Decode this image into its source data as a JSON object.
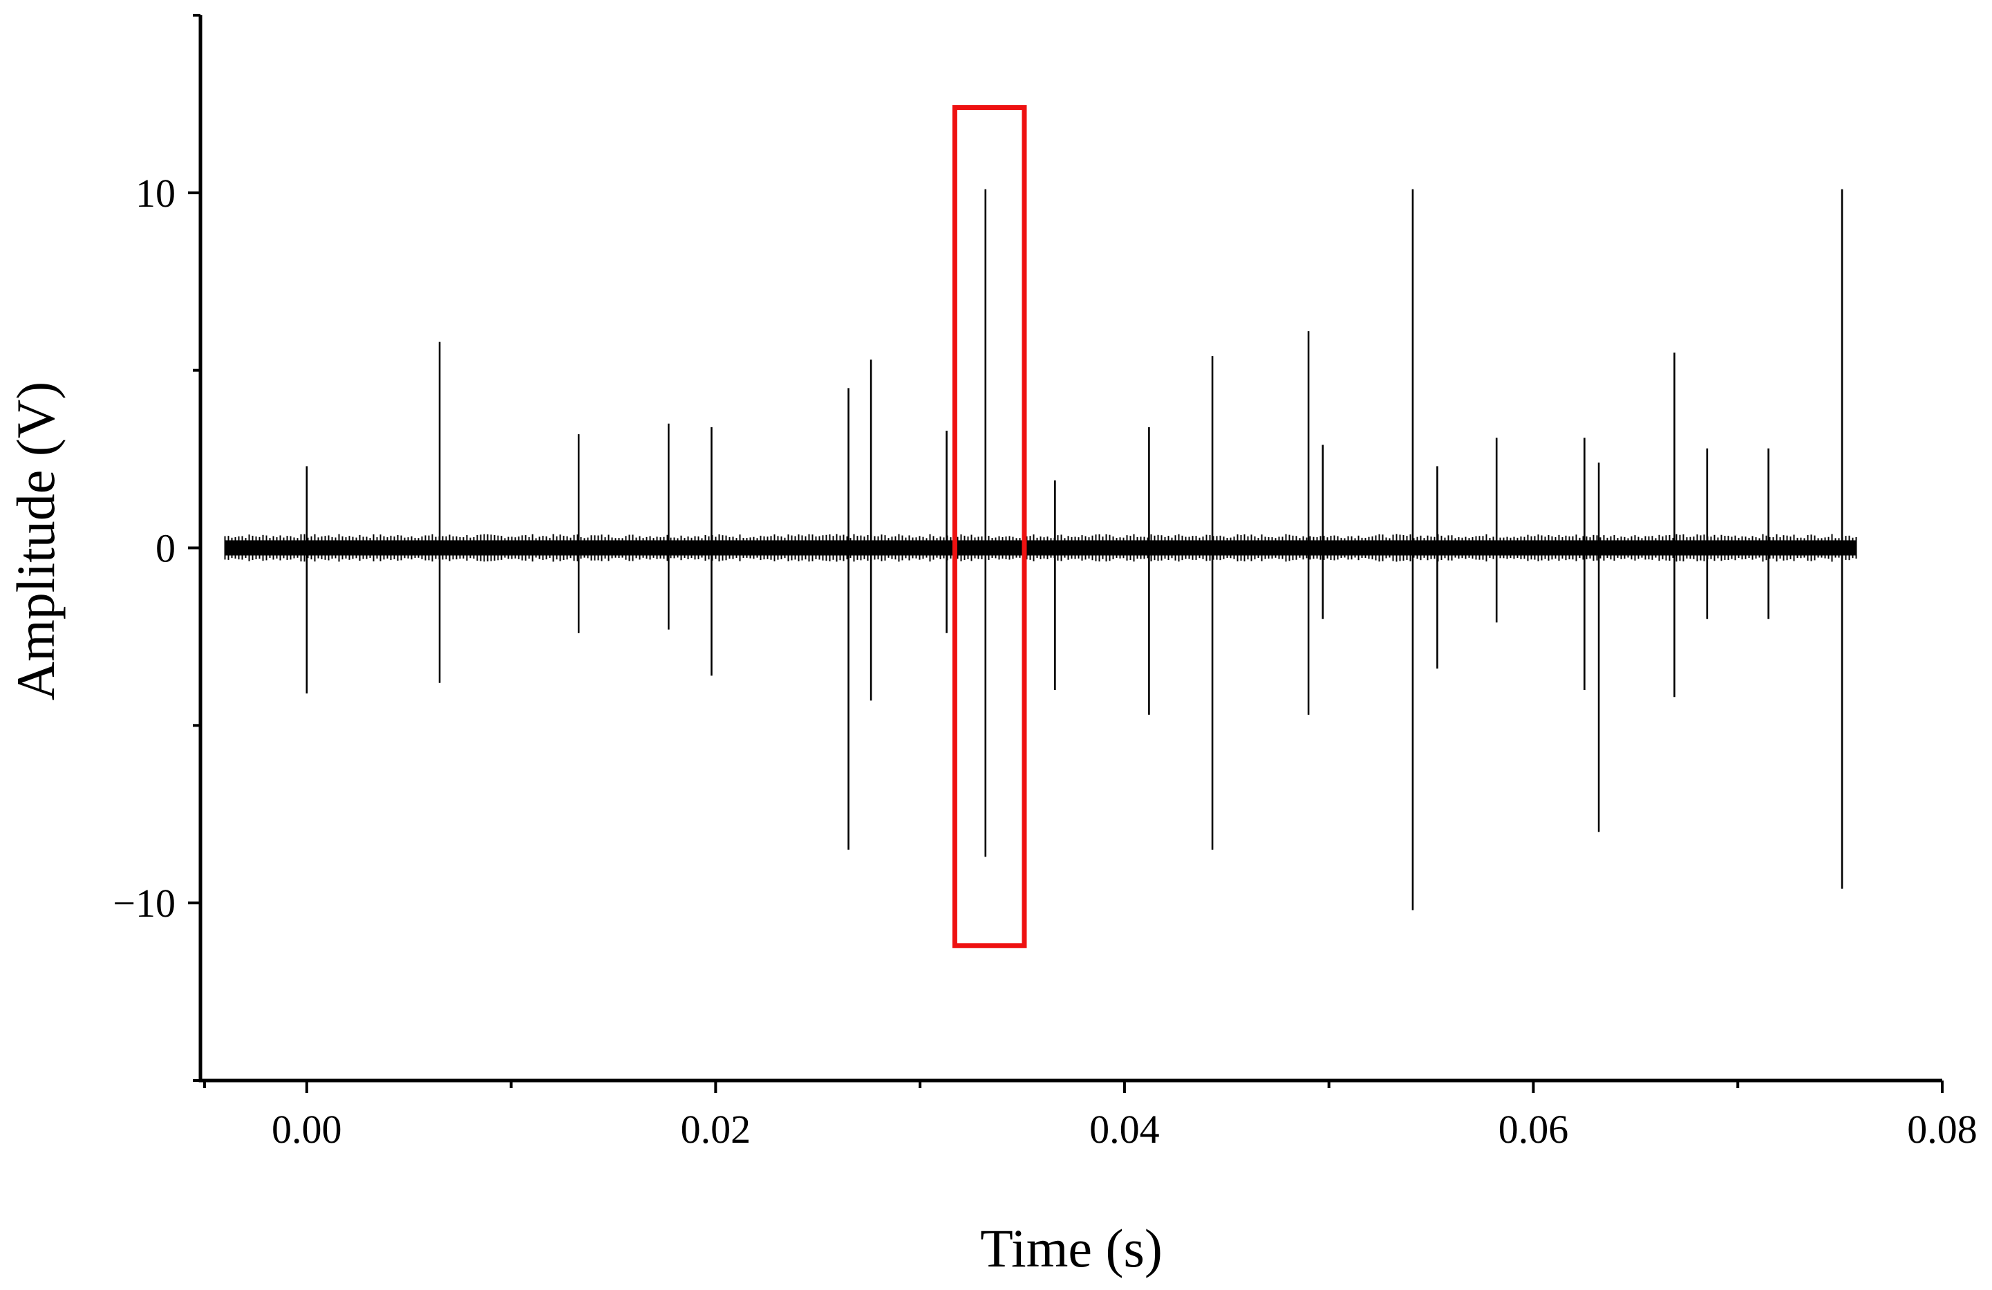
{
  "chart_data": {
    "type": "line",
    "xlabel": "Time (s)",
    "ylabel": "Amplitude (V)",
    "xlim": [
      -0.0052,
      0.08
    ],
    "ylim": [
      -15,
      15
    ],
    "xticks": [
      0.0,
      0.02,
      0.04,
      0.06,
      0.08
    ],
    "xtick_labels": [
      "0.00",
      "0.02",
      "0.04",
      "0.06",
      "0.08"
    ],
    "xminor_ticks": [
      -0.005,
      0.01,
      0.03,
      0.05,
      0.07
    ],
    "yticks": [
      -10,
      0,
      10
    ],
    "ytick_labels": [
      "−10",
      "0",
      "10"
    ],
    "series": [
      {
        "baseline": {
          "x_start": -0.004,
          "x_end": 0.0758,
          "y": 0
        },
        "spikes": [
          {
            "x": 0.0,
            "y_max": 2.3,
            "y_min": -4.1
          },
          {
            "x": 0.0065,
            "y_max": 5.8,
            "y_min": -3.8
          },
          {
            "x": 0.0133,
            "y_max": 3.2,
            "y_min": -2.4
          },
          {
            "x": 0.0177,
            "y_max": 3.5,
            "y_min": -2.3
          },
          {
            "x": 0.0198,
            "y_max": 3.4,
            "y_min": -3.6
          },
          {
            "x": 0.0265,
            "y_max": 4.5,
            "y_min": -8.5
          },
          {
            "x": 0.0276,
            "y_max": 5.3,
            "y_min": -4.3
          },
          {
            "x": 0.0313,
            "y_max": 3.3,
            "y_min": -2.4
          },
          {
            "x": 0.0332,
            "y_max": 10.1,
            "y_min": -8.7
          },
          {
            "x": 0.0366,
            "y_max": 1.9,
            "y_min": -4.0
          },
          {
            "x": 0.0412,
            "y_max": 3.4,
            "y_min": -4.7
          },
          {
            "x": 0.0443,
            "y_max": 5.4,
            "y_min": -8.5
          },
          {
            "x": 0.049,
            "y_max": 6.1,
            "y_min": -4.7
          },
          {
            "x": 0.0497,
            "y_max": 2.9,
            "y_min": -2.0
          },
          {
            "x": 0.0541,
            "y_max": 10.1,
            "y_min": -10.2
          },
          {
            "x": 0.0553,
            "y_max": 2.3,
            "y_min": -3.4
          },
          {
            "x": 0.0582,
            "y_max": 3.1,
            "y_min": -2.1
          },
          {
            "x": 0.0625,
            "y_max": 3.1,
            "y_min": -4.0
          },
          {
            "x": 0.0632,
            "y_max": 2.4,
            "y_min": -8.0
          },
          {
            "x": 0.0669,
            "y_max": 5.5,
            "y_min": -4.2
          },
          {
            "x": 0.0685,
            "y_max": 2.8,
            "y_min": -2.0
          },
          {
            "x": 0.0715,
            "y_max": 2.8,
            "y_min": -2.0
          },
          {
            "x": 0.0751,
            "y_max": 10.1,
            "y_min": -9.6
          }
        ]
      }
    ],
    "annotations": [
      {
        "type": "highlight-rectangle",
        "color": "#ee1111",
        "x_min": 0.0317,
        "x_max": 0.0351,
        "y_min": -11.2,
        "y_max": 12.4
      }
    ],
    "grid": false,
    "legend": "none"
  }
}
